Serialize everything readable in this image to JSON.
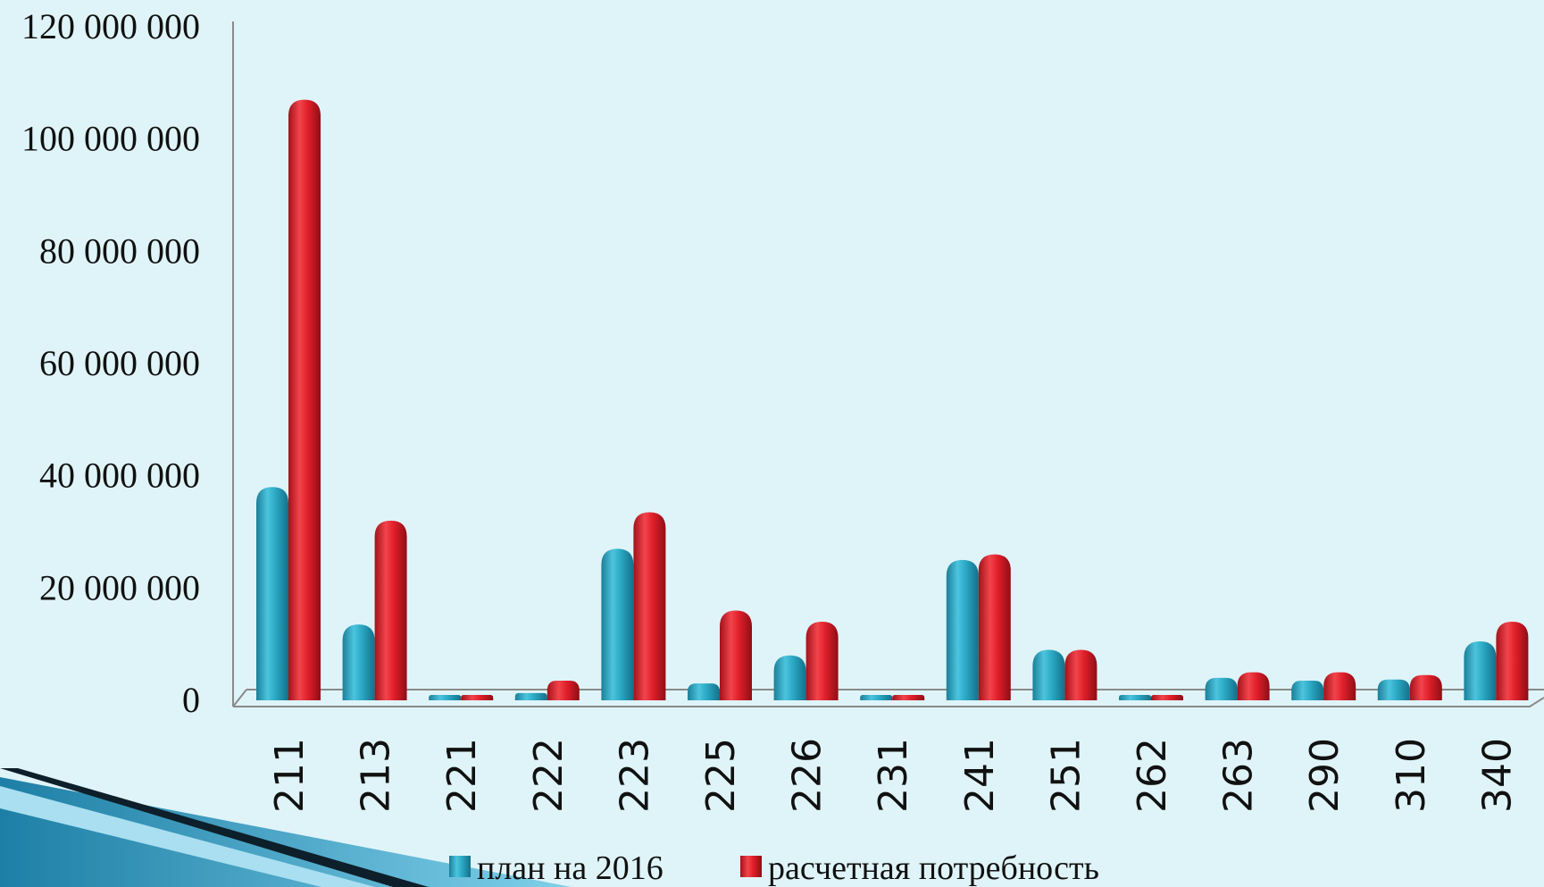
{
  "chart_data": {
    "type": "bar",
    "title": "",
    "xlabel": "",
    "ylabel": "",
    "ylim": [
      0,
      120000000
    ],
    "y_ticks": [
      "0",
      "20 000 000",
      "40 000 000",
      "60 000 000",
      "80 000 000",
      "100 000 000",
      "120 000 000"
    ],
    "y_tick_values": [
      0,
      20000000,
      40000000,
      60000000,
      80000000,
      100000000,
      120000000
    ],
    "categories": [
      "211",
      "213",
      "221",
      "222",
      "223",
      "225",
      "226",
      "231",
      "241",
      "251",
      "262",
      "263",
      "290",
      "310",
      "340"
    ],
    "series": [
      {
        "name": "план на 2016",
        "color": "#2aa8c4",
        "values": [
          38000000,
          13500000,
          600000,
          1300000,
          27000000,
          3000000,
          8000000,
          300000,
          25000000,
          9000000,
          500000,
          4000000,
          3500000,
          3700000,
          10500000
        ]
      },
      {
        "name": "расчетная потребность",
        "color": "#e01f2a",
        "values": [
          107000000,
          32000000,
          800000,
          3500000,
          33500000,
          16000000,
          14000000,
          300000,
          26000000,
          9000000,
          800000,
          5000000,
          5000000,
          4500000,
          14000000
        ]
      }
    ],
    "legend_position": "bottom",
    "grid": false
  }
}
